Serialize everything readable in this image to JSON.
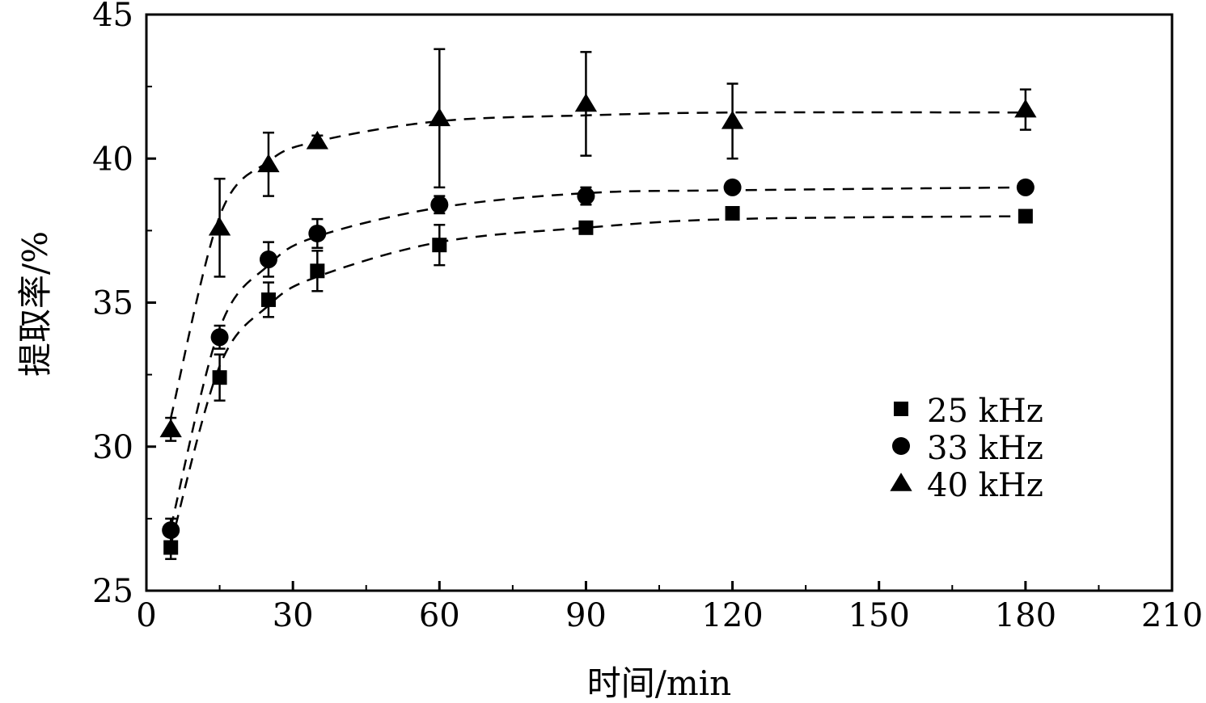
{
  "chart_data": {
    "type": "scatter",
    "xlabel": "时间/min",
    "ylabel": "提取率/%",
    "xlim": [
      0,
      210
    ],
    "ylim": [
      25,
      45
    ],
    "x_ticks": [
      0,
      30,
      60,
      90,
      120,
      150,
      180,
      210
    ],
    "y_ticks": [
      25,
      30,
      35,
      40,
      45
    ],
    "x_tick_labels": [
      "0",
      "30",
      "60",
      "90",
      "120",
      "150",
      "180",
      "210"
    ],
    "y_tick_labels": [
      "25",
      "30",
      "35",
      "40",
      "45"
    ],
    "grid": false,
    "legend_position": "right",
    "fit_lines": "dashed",
    "x": [
      5,
      15,
      25,
      35,
      60,
      90,
      120,
      180
    ],
    "series": [
      {
        "name": "25 kHz",
        "marker": "square",
        "values": [
          26.5,
          32.4,
          35.1,
          36.1,
          37.0,
          37.6,
          38.1,
          38.0
        ],
        "errors": [
          0.4,
          0.8,
          0.6,
          0.7,
          0.7,
          0.1,
          0.2,
          0.1
        ],
        "fit": [
          26.6,
          32.8,
          34.9,
          35.9,
          37.1,
          37.6,
          37.9,
          38.0
        ]
      },
      {
        "name": "33 kHz",
        "marker": "circle",
        "values": [
          27.1,
          33.8,
          36.5,
          37.4,
          38.4,
          38.7,
          39.0,
          39.0
        ],
        "errors": [
          0.4,
          0.4,
          0.6,
          0.5,
          0.3,
          0.3,
          0.1,
          0.1
        ],
        "fit": [
          27.2,
          34.1,
          36.3,
          37.3,
          38.3,
          38.8,
          38.9,
          39.0
        ]
      },
      {
        "name": "40 kHz",
        "marker": "triangle",
        "values": [
          30.6,
          37.6,
          39.8,
          40.6,
          41.4,
          41.9,
          41.3,
          41.7
        ],
        "errors": [
          0.4,
          1.7,
          1.1,
          0.2,
          2.4,
          1.8,
          1.3,
          0.7
        ],
        "fit": [
          31.0,
          38.0,
          39.9,
          40.6,
          41.3,
          41.5,
          41.6,
          41.6
        ]
      }
    ]
  }
}
